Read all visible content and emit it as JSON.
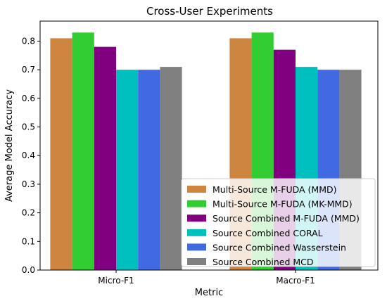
{
  "chart_data": {
    "type": "bar",
    "title": "Cross-User Experiments",
    "xlabel": "Metric",
    "ylabel": "Average Model Accuracy",
    "categories": [
      "Micro-F1",
      "Macro-F1"
    ],
    "ylim": [
      0,
      0.87
    ],
    "yticks": [
      "0.0",
      "0.1",
      "0.2",
      "0.3",
      "0.4",
      "0.5",
      "0.6",
      "0.7",
      "0.8"
    ],
    "legend_position": "lower-right",
    "grid": false,
    "series": [
      {
        "name": "Multi-Source M-FUDA (MMD)",
        "color": "#cd853f",
        "values": [
          0.81,
          0.81
        ]
      },
      {
        "name": "Multi-Source M-FUDA (MK-MMD)",
        "color": "#32cd32",
        "values": [
          0.83,
          0.83
        ]
      },
      {
        "name": "Source Combined M-FUDA (MMD)",
        "color": "#800080",
        "values": [
          0.78,
          0.77
        ]
      },
      {
        "name": "Source Combined CORAL",
        "color": "#00bfbf",
        "values": [
          0.7,
          0.71
        ]
      },
      {
        "name": "Source Combined Wasserstein",
        "color": "#4169e1",
        "values": [
          0.7,
          0.7
        ]
      },
      {
        "name": "Source Combined MCD",
        "color": "#808080",
        "values": [
          0.71,
          0.7
        ]
      }
    ]
  }
}
